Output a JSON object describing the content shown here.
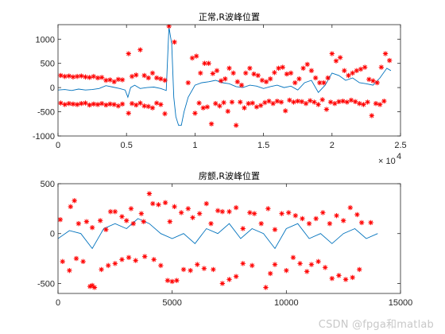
{
  "chart_data": [
    {
      "type": "line",
      "title": "正常,R波峰位置",
      "xlim": [
        0,
        25000
      ],
      "ylim": [
        -1000,
        1300
      ],
      "x_ticks": [
        0,
        5000,
        10000,
        15000,
        20000,
        25000
      ],
      "x_tick_labels": [
        "0",
        "0.5",
        "1",
        "1.5",
        "2",
        "2.5"
      ],
      "x_exponent_label": "× 10",
      "x_exponent_power": "4",
      "y_ticks": [
        -1000,
        -500,
        0,
        500,
        1000
      ],
      "y_tick_labels": [
        "-1000",
        "-500",
        "0",
        "500",
        "1000"
      ],
      "grid": false,
      "series": [
        {
          "style": "line",
          "color": "#0072bd",
          "x": [
            0,
            500,
            1000,
            1500,
            2000,
            2500,
            3000,
            3500,
            4000,
            4500,
            4900,
            5100,
            5300,
            5600,
            6000,
            6500,
            7000,
            7500,
            7900,
            8100,
            8300,
            8450,
            8600,
            8800,
            9000,
            9200,
            9500,
            10000,
            10500,
            11000,
            11500,
            12000,
            12500,
            13000,
            13500,
            14000,
            14500,
            15000,
            15500,
            16000,
            16500,
            17000,
            17500,
            18000,
            18500,
            19000,
            19500,
            20000,
            20500,
            21000,
            21500,
            22000,
            22500,
            23000,
            23500,
            24000,
            24300
          ],
          "y": [
            -50,
            -40,
            -60,
            -30,
            -50,
            -40,
            -20,
            40,
            10,
            -20,
            -50,
            -200,
            0,
            50,
            -20,
            0,
            10,
            -20,
            -60,
            1250,
            900,
            -200,
            -600,
            -780,
            -780,
            -500,
            -200,
            50,
            100,
            120,
            150,
            100,
            80,
            20,
            0,
            50,
            30,
            -20,
            20,
            50,
            0,
            30,
            -50,
            100,
            150,
            -100,
            50,
            300,
            250,
            150,
            200,
            100,
            80,
            50,
            200,
            400,
            350
          ]
        },
        {
          "style": "markers",
          "marker": "*",
          "color": "#ff0000",
          "x": [
            200,
            500,
            800,
            1100,
            1400,
            1700,
            2000,
            2300,
            2600,
            2900,
            3200,
            3500,
            3800,
            4100,
            4400,
            4700,
            5150,
            5400,
            5700,
            6000,
            6300,
            6600,
            6900,
            7200,
            7500,
            7800,
            8100,
            8500,
            9500,
            9800,
            10100,
            10400,
            10700,
            11000,
            11300,
            11600,
            11900,
            12200,
            12500,
            12800,
            13100,
            13400,
            13700,
            14000,
            14300,
            14600,
            14900,
            15200,
            15500,
            15800,
            16100,
            16400,
            16700,
            17000,
            17300,
            17600,
            17900,
            18200,
            18500,
            18800,
            19100,
            19400,
            19700,
            20000,
            20300,
            20600,
            20900,
            21200,
            21500,
            21800,
            22100,
            22400,
            22700,
            23000,
            23300,
            23600,
            23900,
            24200
          ],
          "y": [
            250,
            230,
            240,
            220,
            230,
            240,
            220,
            210,
            230,
            200,
            210,
            150,
            160,
            120,
            170,
            160,
            700,
            230,
            260,
            780,
            250,
            200,
            300,
            200,
            180,
            150,
            1270,
            940,
            100,
            610,
            650,
            300,
            500,
            500,
            290,
            350,
            140,
            180,
            400,
            300,
            120,
            50,
            300,
            400,
            280,
            250,
            150,
            120,
            180,
            310,
            400,
            420,
            280,
            300,
            100,
            180,
            400,
            480,
            350,
            200,
            100,
            100,
            200,
            700,
            550,
            620,
            350,
            250,
            300,
            350,
            380,
            420,
            170,
            140,
            100,
            420,
            700,
            560
          ]
        },
        {
          "style": "markers",
          "marker": "*",
          "color": "#ff0000",
          "x": [
            200,
            500,
            800,
            1100,
            1400,
            1700,
            2000,
            2300,
            2600,
            2900,
            3200,
            3500,
            3800,
            4100,
            4400,
            4700,
            5150,
            5400,
            5700,
            6000,
            6300,
            6600,
            6900,
            7200,
            7500,
            7800,
            10000,
            10300,
            10600,
            10900,
            11200,
            11500,
            11800,
            12100,
            12400,
            12700,
            13000,
            13300,
            13600,
            13900,
            14200,
            14500,
            14800,
            15100,
            15400,
            15700,
            16000,
            16300,
            16600,
            16900,
            17200,
            17500,
            17800,
            18100,
            18400,
            18700,
            19000,
            19300,
            19600,
            19900,
            20200,
            20500,
            20800,
            21100,
            21400,
            21700,
            22000,
            22300,
            22600,
            22900,
            23200,
            23500,
            23800
          ],
          "y": [
            -320,
            -350,
            -330,
            -340,
            -350,
            -330,
            -320,
            -360,
            -340,
            -350,
            -330,
            -360,
            -340,
            -350,
            -380,
            -340,
            -530,
            -330,
            -360,
            -320,
            -380,
            -390,
            -420,
            -320,
            -350,
            -540,
            -530,
            -320,
            -420,
            -400,
            -750,
            -330,
            -380,
            -310,
            -490,
            -300,
            -780,
            -300,
            -420,
            -330,
            -320,
            -400,
            -370,
            -310,
            -280,
            -330,
            -280,
            -300,
            -480,
            -260,
            -300,
            -280,
            -290,
            -330,
            -270,
            -300,
            -350,
            -250,
            -450,
            -300,
            -330,
            -290,
            -280,
            -300,
            -260,
            -290,
            -330,
            -350,
            -300,
            -580,
            -330,
            -350,
            -280
          ]
        }
      ]
    },
    {
      "type": "line",
      "title": "房颤,R波峰位置",
      "xlim": [
        0,
        15000
      ],
      "ylim": [
        -600,
        500
      ],
      "x_ticks": [
        0,
        5000,
        10000,
        15000
      ],
      "x_tick_labels": [
        "0",
        "5000",
        "10000",
        "15000"
      ],
      "y_ticks": [
        -500,
        0,
        500
      ],
      "y_tick_labels": [
        "-500",
        "0",
        "500"
      ],
      "grid": false,
      "series": [
        {
          "style": "line",
          "color": "#0072bd",
          "x": [
            0,
            500,
            1000,
            1500,
            2000,
            2500,
            3000,
            3500,
            4000,
            4500,
            5000,
            5500,
            6000,
            6500,
            7000,
            7500,
            8000,
            8500,
            9000,
            9500,
            10000,
            10500,
            11000,
            11500,
            12000,
            12500,
            13000,
            13500,
            14000
          ],
          "y": [
            -50,
            30,
            0,
            -150,
            50,
            100,
            50,
            150,
            100,
            0,
            -50,
            0,
            -100,
            50,
            0,
            100,
            -50,
            50,
            0,
            -150,
            50,
            100,
            -50,
            0,
            -100,
            0,
            50,
            -50,
            0
          ]
        },
        {
          "style": "markers",
          "marker": "*",
          "color": "#ff0000",
          "x": [
            100,
            550,
            720,
            900,
            1250,
            1500,
            1850,
            2100,
            2300,
            2500,
            2800,
            3000,
            3200,
            3300,
            3650,
            3750,
            4000,
            4150,
            4400,
            4700,
            4900,
            5100,
            5400,
            5700,
            5900,
            6200,
            6500,
            6700,
            7000,
            7200,
            7500,
            7800,
            8100,
            8400,
            8600,
            8900,
            9200,
            9500,
            9800,
            10100,
            10400,
            10700,
            11000,
            11300,
            11600,
            11900,
            12200,
            12500,
            12800,
            13100,
            13300,
            13700
          ],
          "y": [
            140,
            270,
            330,
            100,
            120,
            60,
            130,
            40,
            220,
            220,
            170,
            130,
            250,
            100,
            200,
            120,
            400,
            300,
            290,
            310,
            120,
            270,
            210,
            250,
            160,
            200,
            300,
            100,
            230,
            220,
            220,
            260,
            50,
            210,
            200,
            100,
            250,
            40,
            200,
            210,
            180,
            150,
            100,
            150,
            210,
            100,
            180,
            130,
            260,
            190,
            110,
            110
          ]
        },
        {
          "style": "markers",
          "marker": "*",
          "color": "#ff0000",
          "x": [
            200,
            500,
            800,
            1100,
            1400,
            1500,
            1600,
            1900,
            2200,
            2500,
            2800,
            3100,
            3400,
            3800,
            4200,
            4500,
            4800,
            5000,
            5200,
            5500,
            5800,
            6100,
            6400,
            6800,
            7200,
            7500,
            7800,
            8100,
            8500,
            9100,
            9300,
            9500,
            10000,
            10300,
            10600,
            10900,
            11100,
            11400,
            11700,
            12000,
            12300,
            12600,
            12900,
            13200
          ],
          "y": [
            -280,
            -370,
            -250,
            -280,
            -530,
            -520,
            -540,
            -360,
            -320,
            -300,
            -260,
            -240,
            -270,
            -230,
            -260,
            -320,
            -470,
            -480,
            -470,
            -360,
            -370,
            -310,
            -350,
            -360,
            -500,
            -460,
            -430,
            -300,
            -320,
            -540,
            -400,
            -310,
            -370,
            -240,
            -300,
            -380,
            -310,
            -280,
            -340,
            -450,
            -420,
            -460,
            -440,
            -360
          ]
        }
      ]
    }
  ],
  "watermark": "CSDN @fpga和matlab"
}
